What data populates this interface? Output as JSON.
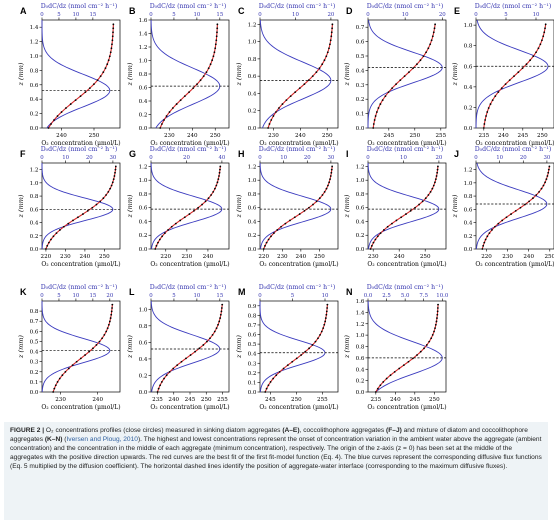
{
  "figure": {
    "top_axis_label": "D₀dC/dz (nmol cm⁻² h⁻¹)",
    "bottom_axis_label": "O₂ concentration (µmol/L)",
    "y_axis_label": "z (mm)",
    "colors": {
      "flux_curve": "#3b3bbf",
      "fit_curve": "#d62728",
      "data_points": "#000000",
      "top_label": "#3636b0",
      "dashed_line": "#000000"
    }
  },
  "chart_data": [
    {
      "panel": "A",
      "type": "line",
      "ylim": [
        0,
        1.5
      ],
      "yticks": [
        "0.0",
        "0.2",
        "0.4",
        "0.6",
        "0.8",
        "1.0",
        "1.2",
        "1.4"
      ],
      "ytick_values": [
        0,
        0.2,
        0.4,
        0.6,
        0.8,
        1.0,
        1.2,
        1.4
      ],
      "xlim_bottom": [
        234,
        258
      ],
      "xticks_bottom": [
        "240",
        "250"
      ],
      "xtick_values_bottom": [
        240,
        250
      ],
      "xlim_top": [
        0,
        23
      ],
      "xticks_top": [
        "0",
        "5",
        "10",
        "15"
      ],
      "xtick_values_top": [
        0,
        5,
        10,
        15
      ],
      "o2_range": [
        236,
        256
      ],
      "interface_z": 0.52,
      "flux_max": 20,
      "flux_width": 0.32
    },
    {
      "panel": "B",
      "type": "line",
      "ylim": [
        0,
        1.6
      ],
      "yticks": [
        "0.0",
        "0.2",
        "0.4",
        "0.6",
        "0.8",
        "1.0",
        "1.2",
        "1.4",
        "1.6"
      ],
      "ytick_values": [
        0,
        0.2,
        0.4,
        0.6,
        0.8,
        1.0,
        1.2,
        1.4,
        1.6
      ],
      "xlim_bottom": [
        222,
        256
      ],
      "xticks_bottom": [
        "230",
        "240",
        "250"
      ],
      "xtick_values_bottom": [
        230,
        240,
        250
      ],
      "xlim_top": [
        0,
        17
      ],
      "xticks_top": [
        "0",
        "5",
        "10",
        "15"
      ],
      "xtick_values_top": [
        0,
        5,
        10,
        15
      ],
      "o2_range": [
        226,
        251
      ],
      "interface_z": 0.62,
      "flux_max": 15,
      "flux_width": 0.38
    },
    {
      "panel": "C",
      "type": "line",
      "ylim": [
        0,
        1.25
      ],
      "yticks": [
        "0.0",
        "0.2",
        "0.4",
        "0.6",
        "0.8",
        "1.0",
        "1.2"
      ],
      "ytick_values": [
        0,
        0.2,
        0.4,
        0.6,
        0.8,
        1.0,
        1.2
      ],
      "xlim_bottom": [
        225,
        254
      ],
      "xticks_bottom": [
        "230",
        "240",
        "250"
      ],
      "xtick_values_bottom": [
        230,
        240,
        250
      ],
      "xlim_top": [
        0,
        22
      ],
      "xticks_top": [
        "0",
        "10",
        "20"
      ],
      "xtick_values_top": [
        0,
        10,
        20
      ],
      "o2_range": [
        228,
        252
      ],
      "interface_z": 0.55,
      "flux_max": 20,
      "flux_width": 0.3
    },
    {
      "panel": "D",
      "type": "line",
      "ylim": [
        0,
        0.75
      ],
      "yticks": [
        "0.0",
        "0.1",
        "0.2",
        "0.3",
        "0.4",
        "0.5",
        "0.6",
        "0.7"
      ],
      "ytick_values": [
        0,
        0.1,
        0.2,
        0.3,
        0.4,
        0.5,
        0.6,
        0.7
      ],
      "xlim_bottom": [
        241,
        256
      ],
      "xticks_bottom": [
        "245",
        "250",
        "255"
      ],
      "xtick_values_bottom": [
        245,
        250,
        255
      ],
      "xlim_top": [
        0,
        21
      ],
      "xticks_top": [
        "0",
        "10",
        "20"
      ],
      "xtick_values_top": [
        0,
        10,
        20
      ],
      "o2_range": [
        242,
        254
      ],
      "interface_z": 0.42,
      "flux_max": 20,
      "flux_width": 0.15
    },
    {
      "panel": "E",
      "type": "line",
      "ylim": [
        0,
        1.05
      ],
      "yticks": [
        "0.0",
        "0.2",
        "0.4",
        "0.6",
        "0.8",
        "1.0"
      ],
      "ytick_values": [
        0,
        0.2,
        0.4,
        0.6,
        0.8,
        1.0
      ],
      "xlim_bottom": [
        233,
        253
      ],
      "xticks_bottom": [
        "235",
        "240",
        "245",
        "250"
      ],
      "xtick_values_bottom": [
        235,
        240,
        245,
        250
      ],
      "xlim_top": [
        0,
        13
      ],
      "xticks_top": [
        "0",
        "5",
        "10"
      ],
      "xtick_values_top": [
        0,
        5,
        10
      ],
      "o2_range": [
        235,
        251
      ],
      "interface_z": 0.6,
      "flux_max": 12,
      "flux_width": 0.22
    },
    {
      "panel": "F",
      "type": "line",
      "ylim": [
        0,
        1.3
      ],
      "yticks": [
        "0.0",
        "0.2",
        "0.4",
        "0.6",
        "0.8",
        "1.0",
        "1.2"
      ],
      "ytick_values": [
        0,
        0.2,
        0.4,
        0.6,
        0.8,
        1.0,
        1.2
      ],
      "xlim_bottom": [
        218,
        258
      ],
      "xticks_bottom": [
        "220",
        "230",
        "240",
        "250"
      ],
      "xtick_values_bottom": [
        220,
        230,
        240,
        250
      ],
      "xlim_top": [
        0,
        33
      ],
      "xticks_top": [
        "0",
        "10",
        "20",
        "30"
      ],
      "xtick_values_top": [
        0,
        10,
        20,
        30
      ],
      "o2_range": [
        220,
        256
      ],
      "interface_z": 0.6,
      "flux_max": 30,
      "flux_width": 0.24
    },
    {
      "panel": "G",
      "type": "line",
      "ylim": [
        0,
        1.25
      ],
      "yticks": [
        "0.0",
        "0.2",
        "0.4",
        "0.6",
        "0.8",
        "1.0",
        "1.2"
      ],
      "ytick_values": [
        0,
        0.2,
        0.4,
        0.6,
        0.8,
        1.0,
        1.2
      ],
      "xlim_bottom": [
        213,
        250
      ],
      "xticks_bottom": [
        "220",
        "230",
        "240"
      ],
      "xtick_values_bottom": [
        220,
        230,
        240
      ],
      "xlim_top": [
        0,
        44
      ],
      "xticks_top": [
        "0",
        "20",
        "40"
      ],
      "xtick_values_top": [
        0,
        20,
        40
      ],
      "o2_range": [
        215,
        246
      ],
      "interface_z": 0.58,
      "flux_max": 40,
      "flux_width": 0.26
    },
    {
      "panel": "H",
      "type": "line",
      "ylim": [
        0,
        1.25
      ],
      "yticks": [
        "0.0",
        "0.2",
        "0.4",
        "0.6",
        "0.8",
        "1.0",
        "1.2"
      ],
      "ytick_values": [
        0,
        0.2,
        0.4,
        0.6,
        0.8,
        1.0,
        1.2
      ],
      "xlim_bottom": [
        218,
        260
      ],
      "xticks_bottom": [
        "220",
        "230",
        "240",
        "250"
      ],
      "xtick_values_bottom": [
        220,
        230,
        240,
        250
      ],
      "xlim_top": [
        0,
        33
      ],
      "xticks_top": [
        "0",
        "10",
        "20",
        "30"
      ],
      "xtick_values_top": [
        0,
        10,
        20,
        30
      ],
      "o2_range": [
        220,
        257
      ],
      "interface_z": 0.58,
      "flux_max": 30,
      "flux_width": 0.26
    },
    {
      "panel": "I",
      "type": "line",
      "ylim": [
        0,
        1.25
      ],
      "yticks": [
        "0.0",
        "0.2",
        "0.4",
        "0.6",
        "0.8",
        "1.0",
        "1.2"
      ],
      "ytick_values": [
        0,
        0.2,
        0.4,
        0.6,
        0.8,
        1.0,
        1.2
      ],
      "xlim_bottom": [
        228,
        258
      ],
      "xticks_bottom": [
        "230",
        "240",
        "250"
      ],
      "xtick_values_bottom": [
        230,
        240,
        250
      ],
      "xlim_top": [
        0,
        22
      ],
      "xticks_top": [
        "0",
        "10",
        "20"
      ],
      "xtick_values_top": [
        0,
        10,
        20
      ],
      "o2_range": [
        229,
        255
      ],
      "interface_z": 0.58,
      "flux_max": 20,
      "flux_width": 0.26
    },
    {
      "panel": "J",
      "type": "line",
      "ylim": [
        0,
        1.3
      ],
      "yticks": [
        "0.0",
        "0.2",
        "0.4",
        "0.6",
        "0.8",
        "1.0",
        "1.2"
      ],
      "ytick_values": [
        0,
        0.2,
        0.4,
        0.6,
        0.8,
        1.0,
        1.2
      ],
      "xlim_bottom": [
        215,
        252
      ],
      "xticks_bottom": [
        "220",
        "230",
        "240",
        "250"
      ],
      "xtick_values_bottom": [
        220,
        230,
        240,
        250
      ],
      "xlim_top": [
        0,
        33
      ],
      "xticks_top": [
        "0",
        "10",
        "20",
        "30"
      ],
      "xtick_values_top": [
        0,
        10,
        20,
        30
      ],
      "o2_range": [
        218,
        250
      ],
      "interface_z": 0.68,
      "flux_max": 30,
      "flux_width": 0.3
    },
    {
      "panel": "K",
      "type": "line",
      "ylim": [
        0,
        0.9
      ],
      "yticks": [
        "0.0",
        "0.1",
        "0.2",
        "0.3",
        "0.4",
        "0.5",
        "0.6",
        "0.7",
        "0.8"
      ],
      "ytick_values": [
        0,
        0.1,
        0.2,
        0.3,
        0.4,
        0.5,
        0.6,
        0.7,
        0.8
      ],
      "xlim_bottom": [
        225,
        246
      ],
      "xticks_bottom": [
        "230",
        "240"
      ],
      "xtick_values_bottom": [
        230,
        240
      ],
      "xlim_top": [
        0,
        23
      ],
      "xticks_top": [
        "0",
        "5",
        "10",
        "15",
        "20"
      ],
      "xtick_values_top": [
        0,
        5,
        10,
        15,
        20
      ],
      "o2_range": [
        228,
        244
      ],
      "interface_z": 0.41,
      "flux_max": 20,
      "flux_width": 0.17
    },
    {
      "panel": "L",
      "type": "line",
      "ylim": [
        0,
        1.1
      ],
      "yticks": [
        "0.0",
        "0.2",
        "0.4",
        "0.6",
        "0.8",
        "1.0"
      ],
      "ytick_values": [
        0,
        0.2,
        0.4,
        0.6,
        0.8,
        1.0
      ],
      "xlim_bottom": [
        233,
        257
      ],
      "xticks_bottom": [
        "235",
        "240",
        "245",
        "250",
        "255"
      ],
      "xtick_values_bottom": [
        235,
        240,
        245,
        250,
        255
      ],
      "xlim_top": [
        0,
        17
      ],
      "xticks_top": [
        "0",
        "5",
        "10",
        "15"
      ],
      "xtick_values_top": [
        0,
        5,
        10,
        15
      ],
      "o2_range": [
        235,
        255
      ],
      "interface_z": 0.52,
      "flux_max": 15,
      "flux_width": 0.24
    },
    {
      "panel": "M",
      "type": "line",
      "ylim": [
        0,
        0.95
      ],
      "yticks": [
        "0.0",
        "0.1",
        "0.2",
        "0.3",
        "0.4",
        "0.5",
        "0.6",
        "0.7",
        "0.8",
        "0.9"
      ],
      "ytick_values": [
        0,
        0.1,
        0.2,
        0.3,
        0.4,
        0.5,
        0.6,
        0.7,
        0.8,
        0.9
      ],
      "xlim_bottom": [
        243,
        258
      ],
      "xticks_bottom": [
        "245",
        "250",
        "255"
      ],
      "xtick_values_bottom": [
        245,
        250,
        255
      ],
      "xlim_top": [
        0,
        12
      ],
      "xticks_top": [
        "0",
        "5",
        "10"
      ],
      "xtick_values_top": [
        0,
        5,
        10
      ],
      "o2_range": [
        244,
        256
      ],
      "interface_z": 0.41,
      "flux_max": 10,
      "flux_width": 0.18
    },
    {
      "panel": "N",
      "type": "line",
      "ylim": [
        0,
        1.6
      ],
      "yticks": [
        "0.0",
        "0.2",
        "0.4",
        "0.6",
        "0.8",
        "1.0",
        "1.2",
        "1.4",
        "1.6"
      ],
      "ytick_values": [
        0,
        0.2,
        0.4,
        0.6,
        0.8,
        1.0,
        1.2,
        1.4,
        1.6
      ],
      "xlim_bottom": [
        233,
        253
      ],
      "xticks_bottom": [
        "235",
        "240",
        "245",
        "250"
      ],
      "xtick_values_bottom": [
        235,
        240,
        245,
        250
      ],
      "xlim_top": [
        0,
        10.5
      ],
      "xticks_top": [
        "0.0",
        "2.5",
        "5.0",
        "7.5",
        "10.0"
      ],
      "xtick_values_top": [
        0,
        2.5,
        5,
        7.5,
        10
      ],
      "o2_range": [
        235,
        251
      ],
      "interface_z": 0.6,
      "flux_max": 10,
      "flux_width": 0.4
    }
  ],
  "caption": {
    "label": "FIGURE 2 |",
    "text_1": " O₂ concentrations profiles (close circles) measured in sinking diatom aggregates ",
    "ref_ae": "(A–E)",
    "text_2": ", coccolithophore aggregates ",
    "ref_fj": "(F–J)",
    "text_3": " and mixture of diatom and coccolithophore aggregates ",
    "ref_kn": "(K–N)",
    "text_4": " (",
    "citation": "Iversen and Ploug, 2010",
    "text_5": "). The highest and lowest concentrations represent the onset of concentration variation in the ambient water above the aggregate (ambient concentration) and the concentration in the middle of each aggregate (minimum concentration), respectively. The origin of the z-axis (z = 0) has been set at the middle of the aggregates with the positive direction upwards. The red curves are the best fit of the first fit-model function (Eq. 4). The blue curves represent the corresponding diffusive flux functions (Eq. 5 multiplied by the diffusion coefficient). The horizontal dashed lines identify the position of aggregate-water interface (corresponding to the maximum diffusive fluxes)."
  }
}
